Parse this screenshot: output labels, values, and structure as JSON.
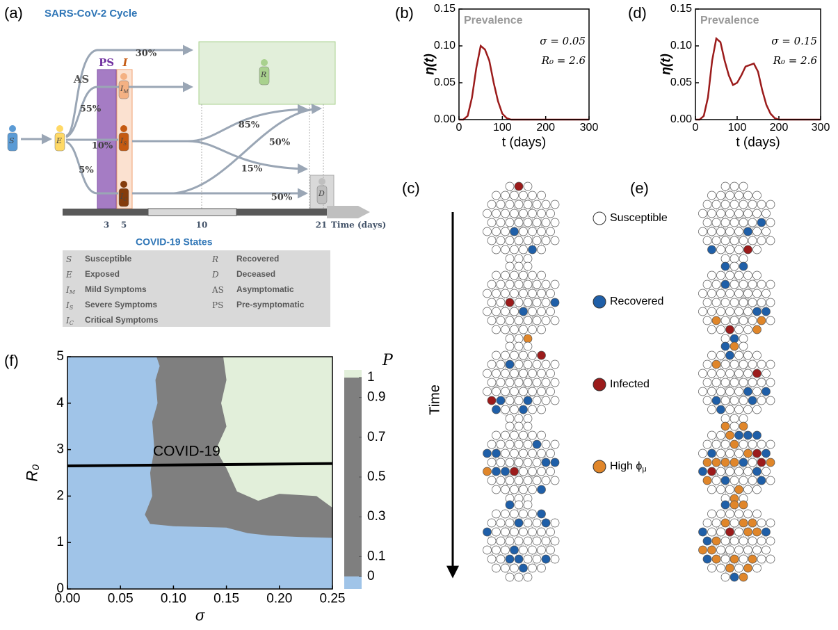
{
  "diagram": {
    "panel_label": "(a)",
    "title": "SARS-CoV-2 Cycle",
    "nodes": [
      {
        "label": "S"
      },
      {
        "label": "E"
      },
      {
        "label": "I",
        "sub": "M"
      },
      {
        "label": "I",
        "sub": "S"
      },
      {
        "label": "I",
        "sub": "C"
      },
      {
        "label": "R"
      },
      {
        "label": "D"
      }
    ],
    "stages": [
      "AS",
      "PS",
      "I"
    ],
    "transitions": [
      "30%",
      "55%",
      "10%",
      "5%",
      "85%",
      "50%",
      "15%",
      "50%"
    ],
    "time_axis": {
      "ticks": [
        3,
        5,
        10,
        21
      ],
      "label": "Time (days)"
    },
    "states_title": "COVID-19 States",
    "states": [
      {
        "symbol": "S",
        "name": "Susceptible"
      },
      {
        "symbol": "E",
        "name": "Exposed"
      },
      {
        "symbol": "I",
        "sub": "M",
        "name": "Mild Symptoms"
      },
      {
        "symbol": "I",
        "sub": "S",
        "name": "Severe Symptoms"
      },
      {
        "symbol": "I",
        "sub": "C",
        "name": "Critical Symptoms"
      },
      {
        "symbol": "R",
        "name": "Recovered"
      },
      {
        "symbol": "D",
        "name": "Deceased"
      },
      {
        "symbol": "AS",
        "name": "Asymptomatic"
      },
      {
        "symbol": "PS",
        "name": "Pre-symptomatic"
      }
    ]
  },
  "networks": {
    "panel_labels": [
      "(c)",
      "(e)"
    ],
    "time_label": "Time",
    "legend": [
      {
        "label": "Susceptible",
        "color": "#ffffff"
      },
      {
        "label": "Recovered",
        "color": "#1f5fa8"
      },
      {
        "label": "Infected",
        "color": "#9b1b1b"
      },
      {
        "label": "High ϕ",
        "sub": "μ",
        "color": "#e0862a"
      }
    ]
  },
  "chart_data": [
    {
      "type": "line",
      "panel_label": "(b)",
      "ylabel": "η(t)",
      "xlabel": "t (days)",
      "annotations": [
        "Prevalence",
        "σ = 0.05",
        "R₀ = 2.6"
      ],
      "x": [
        0,
        10,
        20,
        30,
        40,
        50,
        60,
        70,
        80,
        90,
        100,
        110,
        120,
        130,
        140,
        150,
        160,
        170,
        180,
        190,
        200,
        210,
        220,
        230,
        240,
        250,
        260,
        270,
        280,
        290,
        300
      ],
      "series": [
        {
          "color": "#9b1b1b",
          "values": [
            0,
            0,
            0.005,
            0.03,
            0.07,
            0.1,
            0.095,
            0.08,
            0.05,
            0.025,
            0.008,
            0.002,
            0,
            0,
            0,
            0,
            0,
            0,
            0,
            0,
            0,
            0,
            0,
            0,
            0,
            0,
            0,
            0,
            0,
            0,
            0
          ]
        }
      ],
      "xlim": [
        0,
        300
      ],
      "xticks": [
        0,
        100,
        200,
        300
      ],
      "ylim": [
        0,
        0.15
      ],
      "yticks": [
        {
          "value": 0,
          "label": "0.00"
        },
        0.05,
        {
          "value": 0.1,
          "label": "0.10"
        },
        0.15
      ]
    },
    {
      "type": "line",
      "panel_label": "(d)",
      "ylabel": "η(t)",
      "xlabel": "t (days)",
      "annotations": [
        "Prevalence",
        "σ = 0.15",
        "R₀ = 2.6"
      ],
      "x": [
        0,
        10,
        20,
        30,
        40,
        50,
        60,
        70,
        80,
        90,
        100,
        110,
        120,
        130,
        140,
        150,
        160,
        170,
        180,
        190,
        200,
        210,
        220,
        230,
        240,
        250,
        260,
        270,
        280,
        290,
        300
      ],
      "series": [
        {
          "color": "#9b1b1b",
          "values": [
            0,
            0,
            0.005,
            0.03,
            0.08,
            0.11,
            0.105,
            0.08,
            0.06,
            0.047,
            0.05,
            0.06,
            0.072,
            0.074,
            0.076,
            0.065,
            0.04,
            0.02,
            0.008,
            0.002,
            0,
            0,
            0,
            0,
            0,
            0,
            0,
            0,
            0,
            0,
            0
          ]
        }
      ],
      "xlim": [
        0,
        300
      ],
      "xticks": [
        0,
        100,
        200,
        300
      ],
      "ylim": [
        0,
        0.15
      ],
      "yticks": [
        {
          "value": 0,
          "label": "0.00"
        },
        0.05,
        {
          "value": 0.1,
          "label": "0.10"
        },
        0.15
      ]
    },
    {
      "type": "contour",
      "panel_label": "(f)",
      "ylabel": "R₀",
      "xlabel": "σ",
      "regions": [
        {
          "color": "#a0c4e8",
          "x": [
            0,
            0.25,
            0.25,
            0
          ],
          "y": [
            0,
            0,
            5,
            5
          ]
        },
        {
          "color": "#7f7f7f",
          "x": [
            0.084,
            0.087,
            0.083,
            0.085,
            0.08,
            0.082,
            0.078,
            0.08,
            0.073,
            0.078,
            0.1,
            0.15,
            0.17,
            0.19,
            0.22,
            0.25,
            0.25
          ],
          "y": [
            5,
            4.8,
            4.5,
            4,
            3.6,
            3,
            2.5,
            2,
            1.6,
            1.4,
            1.35,
            1.32,
            1.2,
            1.15,
            1.12,
            1.1,
            5
          ]
        },
        {
          "color": "#e2efda",
          "x": [
            0.147,
            0.15,
            0.145,
            0.15,
            0.14,
            0.15,
            0.16,
            0.18,
            0.2,
            0.235,
            0.25,
            0.25
          ],
          "y": [
            5,
            4.5,
            4,
            3.5,
            3,
            2.6,
            2.1,
            1.9,
            2.05,
            2,
            1.75,
            5
          ]
        }
      ],
      "series": [
        {
          "name": "COVID-19",
          "color": "#000000",
          "x": [
            0,
            0.25
          ],
          "values": [
            2.65,
            2.7
          ]
        }
      ],
      "xlim": [
        0,
        0.25
      ],
      "xticks": [
        {
          "value": 0,
          "label": "0.00"
        },
        0.05,
        {
          "value": 0.1,
          "label": "0.10"
        },
        0.15,
        {
          "value": 0.2,
          "label": "0.20"
        },
        0.25
      ],
      "ylim": [
        0,
        5
      ],
      "yticks": [
        0,
        1,
        2,
        3,
        4,
        5
      ],
      "colorbar": {
        "label": "P",
        "lim": [
          0,
          1
        ],
        "ticks": [
          0,
          0.1,
          0.3,
          0.5,
          0.7,
          0.9,
          1
        ]
      }
    }
  ]
}
